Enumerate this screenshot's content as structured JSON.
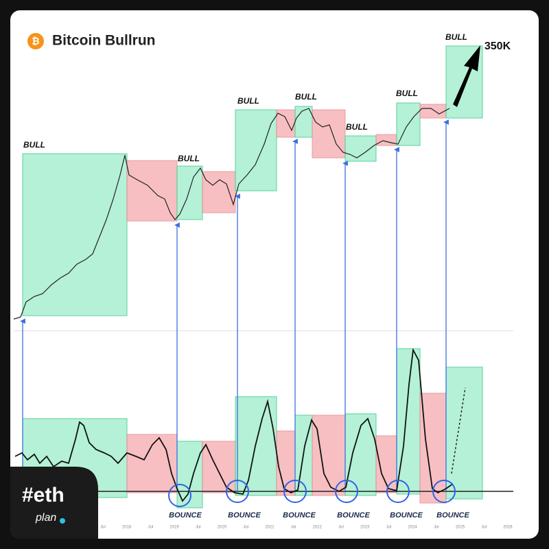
{
  "header": {
    "title": "Bitcoin Bullrun"
  },
  "annotations": {
    "bull": [
      "BULL",
      "BULL",
      "BULL",
      "BULL",
      "BULL",
      "BULL",
      "BULL"
    ],
    "target": "350K",
    "bounce": [
      "BOUNCE",
      "BOUNCE",
      "BOUNCE",
      "BOUNCE",
      "BOUNCE",
      "BOUNCE"
    ]
  },
  "x_axis": {
    "labels": [
      "Jul",
      "2018",
      "Jul",
      "2019",
      "Jul",
      "2020",
      "Jul",
      "2021",
      "Jul",
      "2022",
      "Jul",
      "2023",
      "Jul",
      "2024",
      "Jul",
      "2025",
      "Jul",
      "2026"
    ]
  },
  "logo": {
    "mark": "#eth",
    "sub": "plan"
  }
}
